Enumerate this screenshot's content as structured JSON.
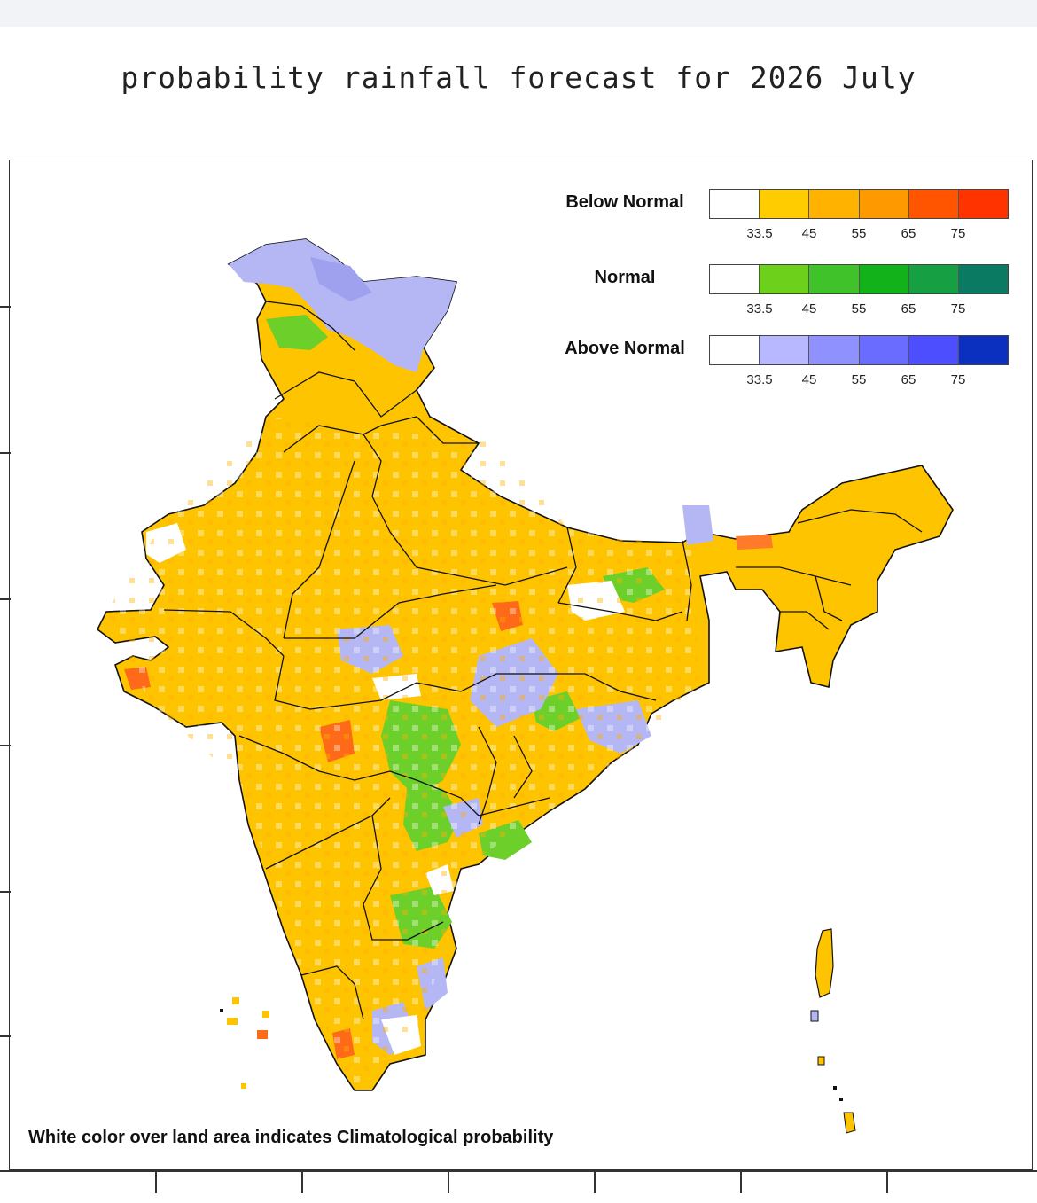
{
  "title": "probability rainfall forecast for 2026 July",
  "legend": [
    {
      "label": "Below Normal",
      "colors": [
        "#ffffff",
        "#ffcc00",
        "#ffb300",
        "#ff9900",
        "#ff5500",
        "#ff3300"
      ]
    },
    {
      "label": "Normal",
      "colors": [
        "#ffffff",
        "#6dd11c",
        "#3fc22a",
        "#12b21a",
        "#16a043",
        "#0b7a62"
      ]
    },
    {
      "label": "Above Normal",
      "colors": [
        "#ffffff",
        "#b7b8ff",
        "#8f91ff",
        "#6a6cff",
        "#4d4fff",
        "#0b2fbf"
      ]
    }
  ],
  "legend_ticks": [
    "33.5",
    "45",
    "55",
    "65",
    "75"
  ],
  "note": "White color over land area indicates Climatological probability",
  "map_colors": {
    "below": "#ffc400",
    "normal": "#6ccf2a",
    "above": "#b5b6f4",
    "hot": "#ff6a18",
    "border": "#111111"
  }
}
